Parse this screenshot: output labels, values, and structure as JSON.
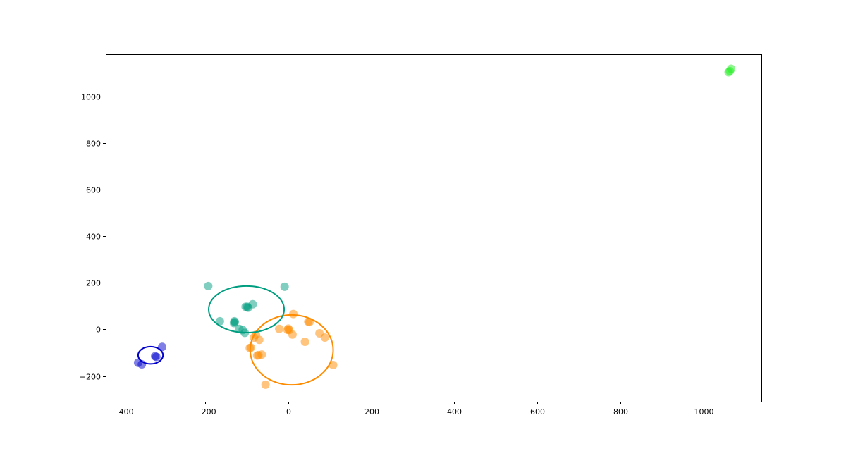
{
  "chart_data": {
    "type": "scatter",
    "title": "",
    "xlabel": "",
    "ylabel": "",
    "xlim": [
      -440,
      1140
    ],
    "ylim": [
      -310,
      1180
    ],
    "grid": false,
    "x_ticks": [
      -400,
      -200,
      0,
      200,
      400,
      600,
      800,
      1000
    ],
    "x_tick_labels": [
      "−400",
      "−200",
      "0",
      "200",
      "400",
      "600",
      "800",
      "1000"
    ],
    "y_ticks": [
      -200,
      0,
      200,
      400,
      600,
      800,
      1000
    ],
    "y_tick_labels": [
      "−200",
      "0",
      "200",
      "400",
      "600",
      "800",
      "1000"
    ],
    "series": [
      {
        "color": "#0000cd",
        "points": [
          {
            "x": -362,
            "y": -143
          },
          {
            "x": -353,
            "y": -150
          },
          {
            "x": -304,
            "y": -75
          },
          {
            "x": -321,
            "y": -115
          },
          {
            "x": -318,
            "y": -118
          }
        ],
        "ellipse": {
          "cx": -332,
          "cy": -111,
          "rx": 30,
          "ry": 37
        }
      },
      {
        "color": "#ff8c00",
        "points": [
          {
            "x": -93,
            "y": -80
          },
          {
            "x": -90,
            "y": -78
          },
          {
            "x": -83,
            "y": -35
          },
          {
            "x": -78,
            "y": -23
          },
          {
            "x": -75,
            "y": -112
          },
          {
            "x": -72,
            "y": -110
          },
          {
            "x": -70,
            "y": -45
          },
          {
            "x": -64,
            "y": -108
          },
          {
            "x": -55,
            "y": -237
          },
          {
            "x": -22,
            "y": 2
          },
          {
            "x": -2,
            "y": -2
          },
          {
            "x": 0,
            "y": 3
          },
          {
            "x": 2,
            "y": -3
          },
          {
            "x": 10,
            "y": -22
          },
          {
            "x": 12,
            "y": 66
          },
          {
            "x": 40,
            "y": -53
          },
          {
            "x": 48,
            "y": 33
          },
          {
            "x": 51,
            "y": 31
          },
          {
            "x": 75,
            "y": -17
          },
          {
            "x": 88,
            "y": -35
          },
          {
            "x": 108,
            "y": -153
          }
        ],
        "ellipse": {
          "cx": 8,
          "cy": -88,
          "rx": 100,
          "ry": 150
        }
      },
      {
        "color": "#009e80",
        "points": [
          {
            "x": -193,
            "y": 186
          },
          {
            "x": -165,
            "y": 35
          },
          {
            "x": -131,
            "y": 27
          },
          {
            "x": -130,
            "y": 35
          },
          {
            "x": -129,
            "y": 31
          },
          {
            "x": -118,
            "y": 2
          },
          {
            "x": -110,
            "y": -3
          },
          {
            "x": -105,
            "y": -15
          },
          {
            "x": -103,
            "y": 97
          },
          {
            "x": -99,
            "y": 97
          },
          {
            "x": -97,
            "y": 93
          },
          {
            "x": -86,
            "y": 108
          },
          {
            "x": -9,
            "y": 183
          }
        ],
        "ellipse": {
          "cx": -101,
          "cy": 86,
          "rx": 91,
          "ry": 100
        }
      },
      {
        "color": "#22ee22",
        "points": [
          {
            "x": 1061,
            "y": 1103
          },
          {
            "x": 1064,
            "y": 1108
          },
          {
            "x": 1067,
            "y": 1118
          }
        ],
        "ellipse": null
      }
    ]
  }
}
